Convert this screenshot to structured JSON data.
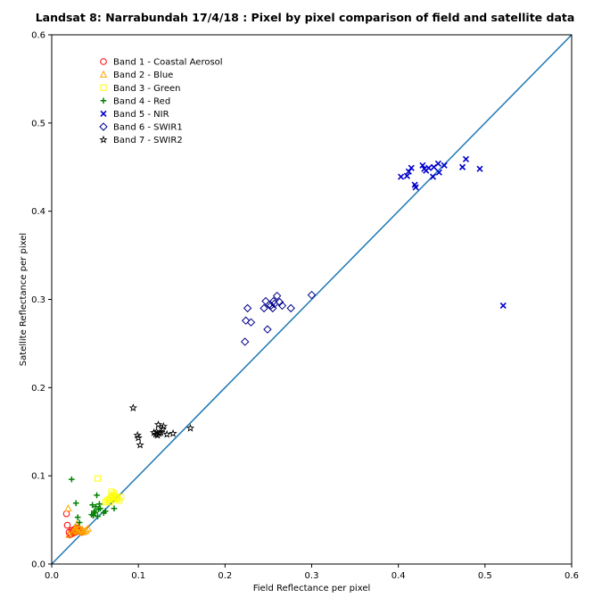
{
  "chart_data": {
    "type": "scatter",
    "title": "Landsat 8: Narrabundah 17/4/18 : Pixel by pixel comparison of field and satellite data",
    "xlabel": "Field Reflectance per pixel",
    "ylabel": "Satellite Reflectance per pixel",
    "xlim": [
      0,
      0.6
    ],
    "ylim": [
      0,
      0.6
    ],
    "xticks": [
      "0.0",
      "0.1",
      "0.2",
      "0.3",
      "0.4",
      "0.5",
      "0.6"
    ],
    "yticks": [
      "0.0",
      "0.1",
      "0.2",
      "0.3",
      "0.4",
      "0.5",
      "0.6"
    ],
    "grid": false,
    "legend_position": "top-left",
    "reference_line": {
      "type": "1:1",
      "from": [
        0,
        0
      ],
      "to": [
        0.6,
        0.6
      ],
      "color": "#1f77b4"
    },
    "series": [
      {
        "name": "Band 1 - Coastal Aerosol",
        "marker": "circle",
        "color": "#ff0000",
        "points": [
          [
            0.017,
            0.057
          ],
          [
            0.018,
            0.044
          ],
          [
            0.02,
            0.036
          ],
          [
            0.021,
            0.033
          ],
          [
            0.022,
            0.034
          ],
          [
            0.023,
            0.038
          ],
          [
            0.025,
            0.037
          ],
          [
            0.026,
            0.039
          ],
          [
            0.027,
            0.036
          ],
          [
            0.028,
            0.038
          ],
          [
            0.029,
            0.04
          ],
          [
            0.03,
            0.037
          ],
          [
            0.031,
            0.038
          ],
          [
            0.033,
            0.039
          ],
          [
            0.034,
            0.037
          ],
          [
            0.035,
            0.036
          ],
          [
            0.028,
            0.041
          ],
          [
            0.025,
            0.035
          ]
        ]
      },
      {
        "name": "Band 2 - Blue",
        "marker": "triangle",
        "color": "#ffa500",
        "points": [
          [
            0.019,
            0.063
          ],
          [
            0.02,
            0.033
          ],
          [
            0.024,
            0.036
          ],
          [
            0.026,
            0.038
          ],
          [
            0.028,
            0.039
          ],
          [
            0.03,
            0.037
          ],
          [
            0.032,
            0.04
          ],
          [
            0.034,
            0.038
          ],
          [
            0.036,
            0.036
          ],
          [
            0.038,
            0.037
          ],
          [
            0.04,
            0.038
          ],
          [
            0.042,
            0.04
          ],
          [
            0.029,
            0.045
          ],
          [
            0.031,
            0.042
          ],
          [
            0.027,
            0.041
          ],
          [
            0.035,
            0.039
          ]
        ]
      },
      {
        "name": "Band 3 - Green",
        "marker": "square",
        "color": "#ffff00",
        "points": [
          [
            0.053,
            0.097
          ],
          [
            0.062,
            0.07
          ],
          [
            0.064,
            0.072
          ],
          [
            0.066,
            0.073
          ],
          [
            0.068,
            0.075
          ],
          [
            0.069,
            0.082
          ],
          [
            0.07,
            0.078
          ],
          [
            0.071,
            0.073
          ],
          [
            0.073,
            0.077
          ],
          [
            0.075,
            0.075
          ],
          [
            0.076,
            0.074
          ],
          [
            0.078,
            0.072
          ],
          [
            0.08,
            0.076
          ],
          [
            0.067,
            0.07
          ],
          [
            0.072,
            0.08
          ]
        ]
      },
      {
        "name": "Band 4 - Red",
        "marker": "plus",
        "color": "#008000",
        "points": [
          [
            0.023,
            0.096
          ],
          [
            0.028,
            0.069
          ],
          [
            0.03,
            0.053
          ],
          [
            0.032,
            0.047
          ],
          [
            0.046,
            0.056
          ],
          [
            0.047,
            0.067
          ],
          [
            0.049,
            0.06
          ],
          [
            0.05,
            0.058
          ],
          [
            0.051,
            0.065
          ],
          [
            0.052,
            0.078
          ],
          [
            0.053,
            0.054
          ],
          [
            0.054,
            0.062
          ],
          [
            0.055,
            0.068
          ],
          [
            0.056,
            0.063
          ],
          [
            0.06,
            0.058
          ],
          [
            0.062,
            0.06
          ],
          [
            0.072,
            0.063
          ],
          [
            0.048,
            0.055
          ]
        ]
      },
      {
        "name": "Band 5 - NIR",
        "marker": "x",
        "color": "#0000cd",
        "points": [
          [
            0.403,
            0.439
          ],
          [
            0.41,
            0.44
          ],
          [
            0.412,
            0.445
          ],
          [
            0.415,
            0.449
          ],
          [
            0.419,
            0.43
          ],
          [
            0.42,
            0.427
          ],
          [
            0.428,
            0.452
          ],
          [
            0.43,
            0.448
          ],
          [
            0.432,
            0.446
          ],
          [
            0.435,
            0.449
          ],
          [
            0.44,
            0.439
          ],
          [
            0.441,
            0.45
          ],
          [
            0.446,
            0.454
          ],
          [
            0.447,
            0.444
          ],
          [
            0.453,
            0.452
          ],
          [
            0.474,
            0.45
          ],
          [
            0.478,
            0.459
          ],
          [
            0.494,
            0.448
          ],
          [
            0.521,
            0.293
          ]
        ]
      },
      {
        "name": "Band 6 - SWIR1",
        "marker": "diamond",
        "color": "#00008b",
        "points": [
          [
            0.223,
            0.252
          ],
          [
            0.224,
            0.276
          ],
          [
            0.226,
            0.29
          ],
          [
            0.23,
            0.274
          ],
          [
            0.245,
            0.29
          ],
          [
            0.247,
            0.298
          ],
          [
            0.249,
            0.266
          ],
          [
            0.251,
            0.294
          ],
          [
            0.253,
            0.293
          ],
          [
            0.255,
            0.29
          ],
          [
            0.257,
            0.295
          ],
          [
            0.26,
            0.304
          ],
          [
            0.263,
            0.297
          ],
          [
            0.266,
            0.293
          ],
          [
            0.276,
            0.29
          ],
          [
            0.3,
            0.305
          ],
          [
            0.256,
            0.298
          ]
        ]
      },
      {
        "name": "Band 7 - SWIR2",
        "marker": "star",
        "color": "#000000",
        "points": [
          [
            0.094,
            0.177
          ],
          [
            0.099,
            0.146
          ],
          [
            0.1,
            0.143
          ],
          [
            0.102,
            0.135
          ],
          [
            0.118,
            0.149
          ],
          [
            0.12,
            0.147
          ],
          [
            0.121,
            0.15
          ],
          [
            0.122,
            0.146
          ],
          [
            0.123,
            0.158
          ],
          [
            0.124,
            0.148
          ],
          [
            0.126,
            0.149
          ],
          [
            0.128,
            0.153
          ],
          [
            0.129,
            0.156
          ],
          [
            0.133,
            0.147
          ],
          [
            0.14,
            0.148
          ],
          [
            0.16,
            0.154
          ]
        ]
      }
    ]
  }
}
